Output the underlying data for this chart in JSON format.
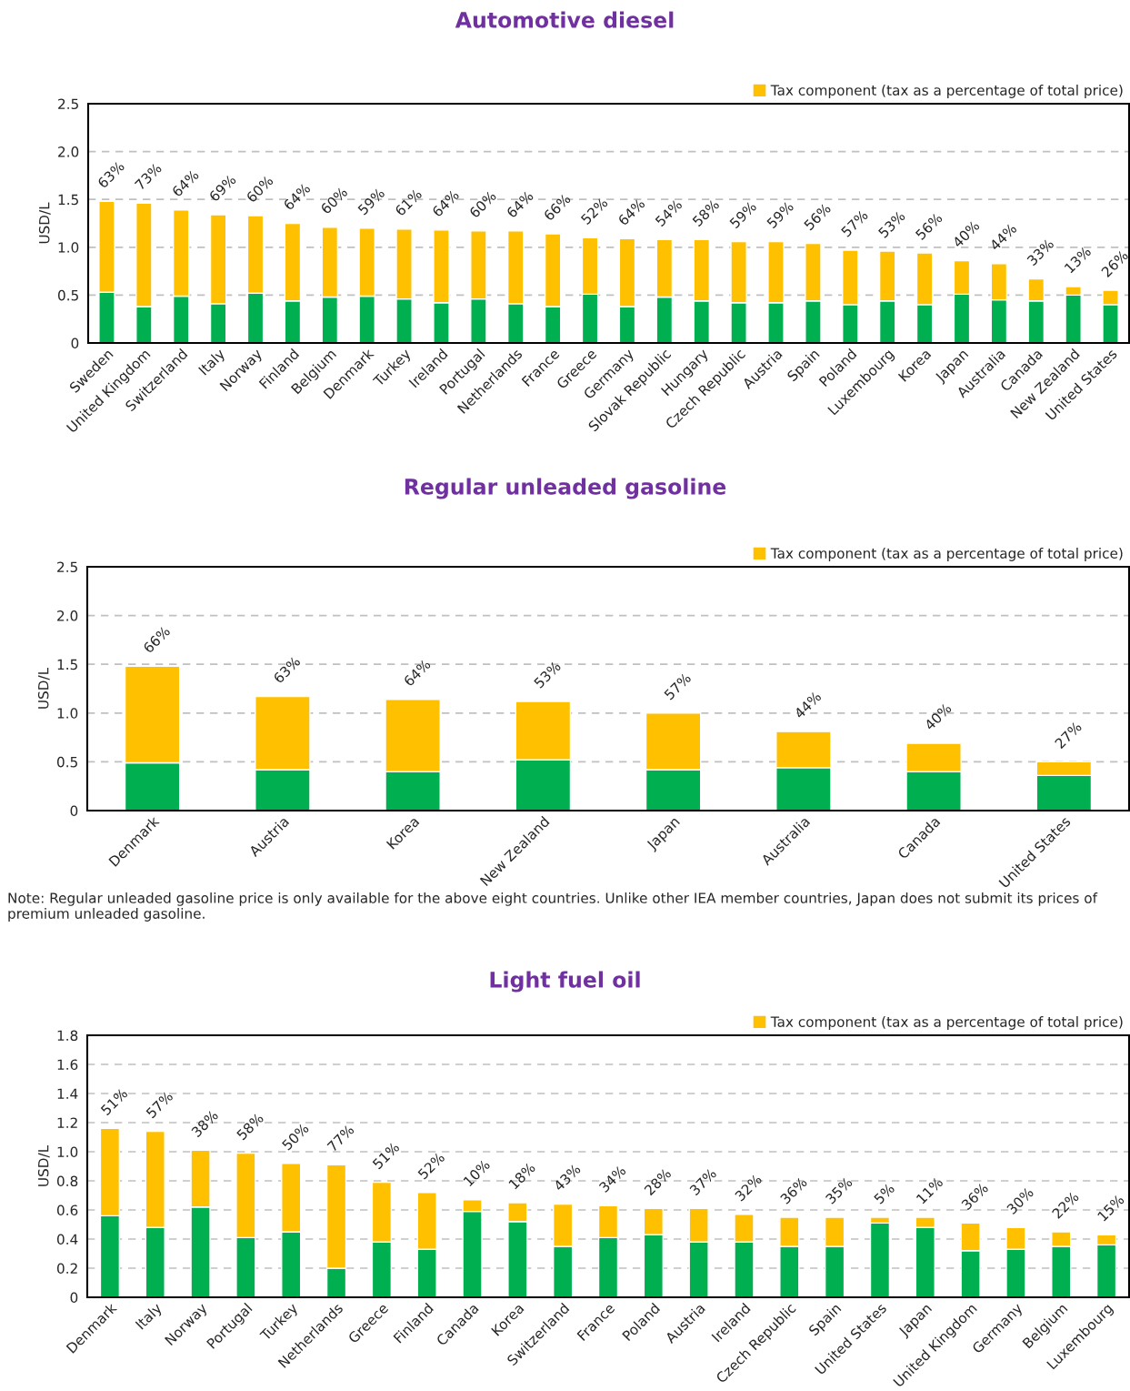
{
  "chart_data": [
    {
      "type": "bar",
      "title": "Automotive diesel",
      "ylabel": "USD/L",
      "stacked": true,
      "grid": "y",
      "legend": "top right",
      "categories": [
        "Sweden",
        "United Kingdom",
        "Switzerland",
        "Italy",
        "Norway",
        "Finland",
        "Belgium",
        "Denmark",
        "Turkey",
        "Ireland",
        "Portugal",
        "Netherlands",
        "France",
        "Greece",
        "Germany",
        "Slovak Republic",
        "Hungary",
        "Czech Republic",
        "Austria",
        "Spain",
        "Poland",
        "Luxembourg",
        "Korea",
        "Japan",
        "Australia",
        "Canada",
        "New Zealand",
        "United States"
      ],
      "ylim": [
        0,
        2.5
      ],
      "yticks": [
        0,
        0.5,
        {
          "value": 1.0,
          "label": "1.0"
        },
        1.5,
        {
          "value": 2.0,
          "label": "2.0"
        },
        2.5
      ],
      "series": [
        {
          "color": "#00b050",
          "values": [
            0.53,
            0.38,
            0.49,
            0.41,
            0.52,
            0.44,
            0.48,
            0.49,
            0.46,
            0.42,
            0.46,
            0.41,
            0.38,
            0.51,
            0.38,
            0.48,
            0.44,
            0.42,
            0.42,
            0.44,
            0.4,
            0.44,
            0.4,
            0.51,
            0.45,
            0.44,
            0.5,
            0.4
          ]
        },
        {
          "name": "Tax component (tax as a percentage of total price)",
          "color": "#ffc000",
          "values": [
            0.95,
            1.08,
            0.9,
            0.93,
            0.81,
            0.81,
            0.73,
            0.71,
            0.73,
            0.76,
            0.71,
            0.76,
            0.76,
            0.59,
            0.71,
            0.6,
            0.64,
            0.64,
            0.64,
            0.6,
            0.57,
            0.52,
            0.54,
            0.35,
            0.38,
            0.23,
            0.09,
            0.15
          ]
        }
      ],
      "annotations": [
        {
          "text": "63%",
          "x": "Sweden",
          "y": 1.48
        },
        {
          "text": "73%",
          "x": "United Kingdom",
          "y": 1.46
        },
        {
          "text": "64%",
          "x": "Switzerland",
          "y": 1.39
        },
        {
          "text": "69%",
          "x": "Italy",
          "y": 1.34
        },
        {
          "text": "60%",
          "x": "Norway",
          "y": 1.33
        },
        {
          "text": "64%",
          "x": "Finland",
          "y": 1.25
        },
        {
          "text": "60%",
          "x": "Belgium",
          "y": 1.21
        },
        {
          "text": "59%",
          "x": "Denmark",
          "y": 1.2
        },
        {
          "text": "61%",
          "x": "Turkey",
          "y": 1.19
        },
        {
          "text": "64%",
          "x": "Ireland",
          "y": 1.18
        },
        {
          "text": "60%",
          "x": "Portugal",
          "y": 1.17
        },
        {
          "text": "64%",
          "x": "Netherlands",
          "y": 1.17
        },
        {
          "text": "66%",
          "x": "France",
          "y": 1.14
        },
        {
          "text": "52%",
          "x": "Greece",
          "y": 1.1
        },
        {
          "text": "64%",
          "x": "Germany",
          "y": 1.09
        },
        {
          "text": "54%",
          "x": "Slovak Republic",
          "y": 1.08
        },
        {
          "text": "58%",
          "x": "Hungary",
          "y": 1.08
        },
        {
          "text": "59%",
          "x": "Czech Republic",
          "y": 1.06
        },
        {
          "text": "59%",
          "x": "Austria",
          "y": 1.06
        },
        {
          "text": "56%",
          "x": "Spain",
          "y": 1.04
        },
        {
          "text": "57%",
          "x": "Poland",
          "y": 0.97
        },
        {
          "text": "53%",
          "x": "Luxembourg",
          "y": 0.96
        },
        {
          "text": "56%",
          "x": "Korea",
          "y": 0.94
        },
        {
          "text": "40%",
          "x": "Japan",
          "y": 0.86
        },
        {
          "text": "44%",
          "x": "Australia",
          "y": 0.83
        },
        {
          "text": "33%",
          "x": "Canada",
          "y": 0.67
        },
        {
          "text": "13%",
          "x": "New Zealand",
          "y": 0.59
        },
        {
          "text": "26%",
          "x": "United States",
          "y": 0.55
        }
      ]
    },
    {
      "type": "bar",
      "title": "Regular unleaded gasoline",
      "ylabel": "USD/L",
      "stacked": true,
      "grid": "y",
      "legend": "top right",
      "categories": [
        "Denmark",
        "Austria",
        "Korea",
        "New Zealand",
        "Japan",
        "Australia",
        "Canada",
        "United States"
      ],
      "ylim": [
        0,
        2.5
      ],
      "yticks": [
        0,
        0.5,
        {
          "value": 1.0,
          "label": "1.0"
        },
        1.5,
        {
          "value": 2.0,
          "label": "2.0"
        },
        2.5
      ],
      "series": [
        {
          "color": "#00b050",
          "values": [
            0.49,
            0.42,
            0.4,
            0.52,
            0.42,
            0.44,
            0.4,
            0.36
          ]
        },
        {
          "name": "Tax component (tax as a percentage of total price)",
          "color": "#ffc000",
          "values": [
            0.99,
            0.75,
            0.74,
            0.6,
            0.58,
            0.37,
            0.29,
            0.14
          ]
        }
      ],
      "annotations": [
        {
          "text": "66%",
          "x": "Denmark",
          "y": 1.48
        },
        {
          "text": "63%",
          "x": "Austria",
          "y": 1.17
        },
        {
          "text": "64%",
          "x": "Korea",
          "y": 1.14
        },
        {
          "text": "53%",
          "x": "New Zealand",
          "y": 1.12
        },
        {
          "text": "57%",
          "x": "Japan",
          "y": 1.0
        },
        {
          "text": "44%",
          "x": "Australia",
          "y": 0.81
        },
        {
          "text": "40%",
          "x": "Canada",
          "y": 0.69
        },
        {
          "text": "27%",
          "x": "United States",
          "y": 0.5
        },
        "Note: Regular unleaded gasoline price is only available for the above eight countries. Unlike other IEA member countries, Japan does not submit its prices of premium unleaded gasoline."
      ]
    },
    {
      "type": "bar",
      "title": "Light fuel oil",
      "ylabel": "USD/L",
      "stacked": true,
      "grid": "y",
      "legend": "top right",
      "categories": [
        "Denmark",
        "Italy",
        "Norway",
        "Portugal",
        "Turkey",
        "Netherlands",
        "Greece",
        "Finland",
        "Canada",
        "Korea",
        "Switzerland",
        "France",
        "Poland",
        "Austria",
        "Ireland",
        "Czech Republic",
        "Spain",
        "United States",
        "Japan",
        "United Kingdom",
        "Germany",
        "Belgium",
        "Luxembourg"
      ],
      "ylim": [
        0,
        1.8
      ],
      "yticks": [
        0,
        {
          "value": 0.2,
          "label": "0.2"
        },
        {
          "value": 0.4,
          "label": "0.4"
        },
        {
          "value": 0.6,
          "label": "0.6"
        },
        {
          "value": 0.8,
          "label": "0.8"
        },
        {
          "value": 1.0,
          "label": "1.0"
        },
        {
          "value": 1.2,
          "label": "1.2"
        },
        {
          "value": 1.4,
          "label": "1.4"
        },
        {
          "value": 1.6,
          "label": "1.6"
        },
        {
          "value": 1.8,
          "label": "1.8"
        }
      ],
      "series": [
        {
          "color": "#00b050",
          "values": [
            0.56,
            0.48,
            0.62,
            0.41,
            0.45,
            0.2,
            0.38,
            0.33,
            0.59,
            0.52,
            0.35,
            0.41,
            0.43,
            0.38,
            0.38,
            0.35,
            0.35,
            0.51,
            0.48,
            0.32,
            0.33,
            0.35,
            0.36
          ]
        },
        {
          "name": "Tax component (tax as a percentage of total price)",
          "color": "#ffc000",
          "values": [
            0.6,
            0.66,
            0.39,
            0.58,
            0.47,
            0.71,
            0.41,
            0.39,
            0.08,
            0.13,
            0.29,
            0.22,
            0.18,
            0.23,
            0.19,
            0.2,
            0.2,
            0.04,
            0.07,
            0.19,
            0.15,
            0.1,
            0.07
          ]
        }
      ],
      "annotations": [
        {
          "text": "51%",
          "x": "Denmark",
          "y": 1.16
        },
        {
          "text": "57%",
          "x": "Italy",
          "y": 1.14
        },
        {
          "text": "38%",
          "x": "Norway",
          "y": 1.01
        },
        {
          "text": "58%",
          "x": "Portugal",
          "y": 0.99
        },
        {
          "text": "50%",
          "x": "Turkey",
          "y": 0.92
        },
        {
          "text": "77%",
          "x": "Netherlands",
          "y": 0.91
        },
        {
          "text": "51%",
          "x": "Greece",
          "y": 0.79
        },
        {
          "text": "52%",
          "x": "Finland",
          "y": 0.72
        },
        {
          "text": "10%",
          "x": "Canada",
          "y": 0.67
        },
        {
          "text": "18%",
          "x": "Korea",
          "y": 0.65
        },
        {
          "text": "43%",
          "x": "Switzerland",
          "y": 0.64
        },
        {
          "text": "34%",
          "x": "France",
          "y": 0.63
        },
        {
          "text": "28%",
          "x": "Poland",
          "y": 0.61
        },
        {
          "text": "37%",
          "x": "Austria",
          "y": 0.61
        },
        {
          "text": "32%",
          "x": "Ireland",
          "y": 0.57
        },
        {
          "text": "36%",
          "x": "Czech Republic",
          "y": 0.55
        },
        {
          "text": "35%",
          "x": "Spain",
          "y": 0.55
        },
        {
          "text": "5%",
          "x": "United States",
          "y": 0.55
        },
        {
          "text": "11%",
          "x": "Japan",
          "y": 0.55
        },
        {
          "text": "36%",
          "x": "United Kingdom",
          "y": 0.51
        },
        {
          "text": "30%",
          "x": "Germany",
          "y": 0.48
        },
        {
          "text": "22%",
          "x": "Belgium",
          "y": 0.45
        },
        {
          "text": "15%",
          "x": "Luxembourg",
          "y": 0.43
        }
      ]
    }
  ]
}
